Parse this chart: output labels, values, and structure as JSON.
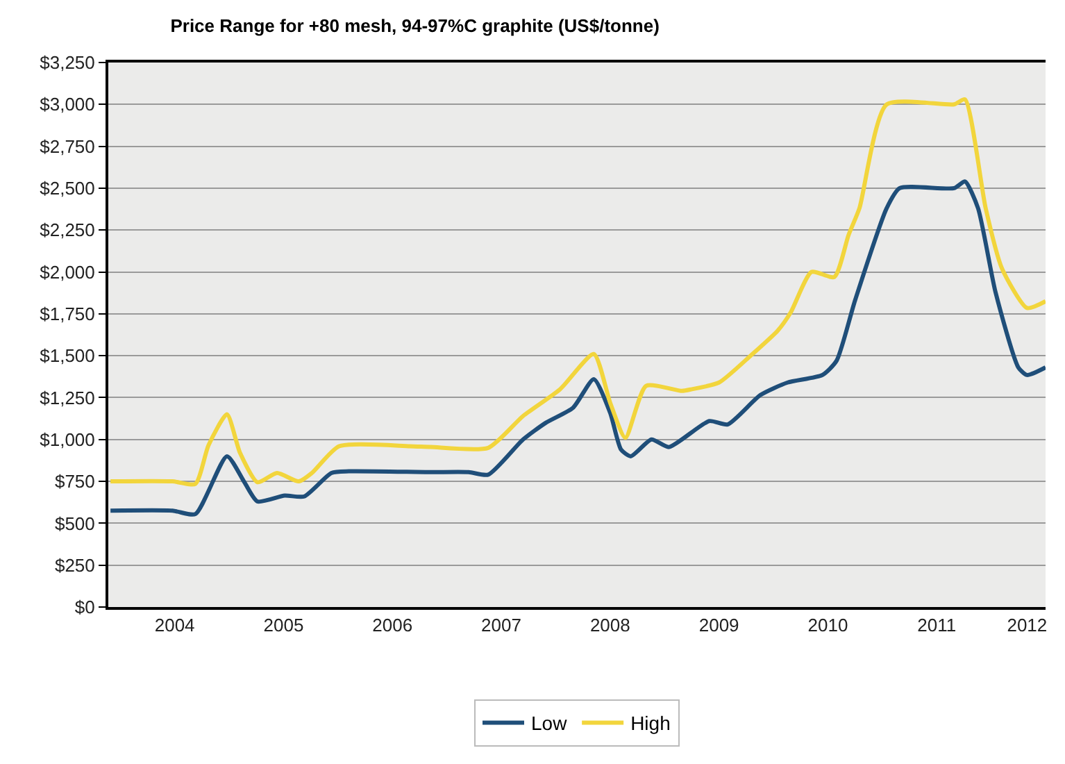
{
  "chart_data": {
    "type": "line",
    "title": "Price Range for +80 mesh, 94-97%C graphite (US$/tonne)",
    "series": [
      {
        "name": "Low",
        "color": "#1f4e79",
        "x": [
          2003.91,
          2004.48,
          2004.69,
          2004.98,
          2005.14,
          2005.26,
          2005.51,
          2005.69,
          2005.94,
          2006.1,
          2006.85,
          2007.2,
          2007.38,
          2007.7,
          2007.91,
          2008.16,
          2008.35,
          2008.5,
          2008.6,
          2008.69,
          2008.88,
          2009.04,
          2009.41,
          2009.58,
          2009.88,
          2010.13,
          2010.45,
          2010.58,
          2010.75,
          2011.04,
          2011.16,
          2011.66,
          2011.76,
          2011.88,
          2012.04,
          2012.25,
          2012.33,
          2012.5
        ],
        "values": [
          575,
          575,
          555,
          900,
          745,
          630,
          665,
          660,
          800,
          810,
          805,
          805,
          790,
          1000,
          1100,
          1190,
          1360,
          1160,
          940,
          900,
          1000,
          955,
          1110,
          1090,
          1265,
          1340,
          1385,
          1470,
          1830,
          2380,
          2500,
          2500,
          2540,
          2380,
          1880,
          1430,
          1385,
          1430
        ]
      },
      {
        "name": "High",
        "color": "#f2d53c",
        "x": [
          2003.91,
          2004.48,
          2004.69,
          2004.81,
          2004.98,
          2005.1,
          2005.26,
          2005.44,
          2005.64,
          2005.76,
          2006.01,
          2006.66,
          2006.85,
          2007.38,
          2007.7,
          2008.04,
          2008.35,
          2008.5,
          2008.64,
          2008.83,
          2009.16,
          2009.25,
          2009.5,
          2009.79,
          2010.04,
          2010.16,
          2010.35,
          2010.56,
          2010.69,
          2010.79,
          2011.04,
          2011.66,
          2011.76,
          2011.95,
          2012.1,
          2012.33,
          2012.5
        ],
        "values": [
          750,
          750,
          735,
          965,
          1150,
          920,
          745,
          800,
          750,
          800,
          960,
          960,
          955,
          950,
          1140,
          1300,
          1510,
          1220,
          1010,
          1320,
          1290,
          1300,
          1340,
          1500,
          1650,
          1760,
          2000,
          1970,
          2220,
          2380,
          3000,
          3000,
          3030,
          2380,
          2020,
          1785,
          1825
        ]
      }
    ],
    "xlim": [
      2003.89,
      2012.5
    ],
    "xticks": [
      {
        "value": 2004.5,
        "label": "2004"
      },
      {
        "value": 2005.5,
        "label": "2005"
      },
      {
        "value": 2006.5,
        "label": "2006"
      },
      {
        "value": 2007.5,
        "label": "2007"
      },
      {
        "value": 2008.5,
        "label": "2008"
      },
      {
        "value": 2009.5,
        "label": "2009"
      },
      {
        "value": 2010.5,
        "label": "2010"
      },
      {
        "value": 2011.5,
        "label": "2011"
      },
      {
        "value": 2012.33,
        "label": "2012"
      }
    ],
    "ylim": [
      0,
      3250
    ],
    "yticks": [
      {
        "value": 0,
        "label": "$0"
      },
      {
        "value": 250,
        "label": "$250"
      },
      {
        "value": 500,
        "label": "$500"
      },
      {
        "value": 750,
        "label": "$750"
      },
      {
        "value": 1000,
        "label": "$1,000"
      },
      {
        "value": 1250,
        "label": "$1,250"
      },
      {
        "value": 1500,
        "label": "$1,500"
      },
      {
        "value": 1750,
        "label": "$1,750"
      },
      {
        "value": 2000,
        "label": "$2,000"
      },
      {
        "value": 2250,
        "label": "$2,250"
      },
      {
        "value": 2500,
        "label": "$2,500"
      },
      {
        "value": 2750,
        "label": "$2,750"
      },
      {
        "value": 3000,
        "label": "$3,000"
      },
      {
        "value": 3250,
        "label": "$3,250"
      }
    ],
    "grid": "y",
    "legend": "bottom",
    "marker": "none",
    "line_style": "solid"
  }
}
